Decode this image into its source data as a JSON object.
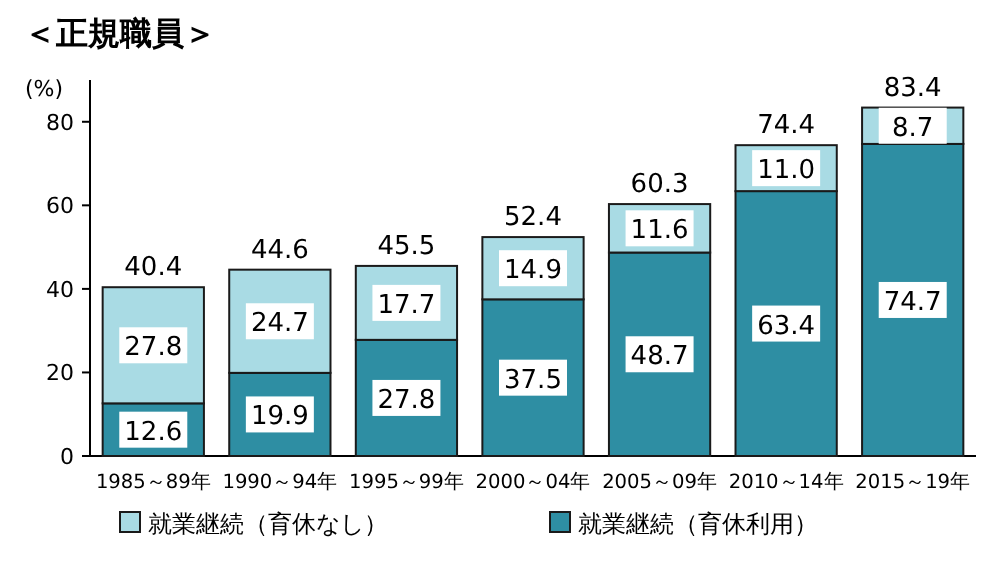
{
  "chart_data": {
    "type": "bar",
    "stacked": true,
    "title": "＜正規職員＞",
    "ylabel": "(%)",
    "categories": [
      "1985～89年",
      "1990～94年",
      "1995～99年",
      "2000～04年",
      "2005～09年",
      "2010～14年",
      "2015～19年"
    ],
    "series": [
      {
        "name": "就業継続（育休利用）",
        "color": "#2e8ea3",
        "values": [
          12.6,
          19.9,
          27.8,
          37.5,
          48.7,
          63.4,
          74.7
        ],
        "value_labels": [
          "12.6",
          "19.9",
          "27.8",
          "37.5",
          "48.7",
          "63.4",
          "74.7"
        ]
      },
      {
        "name": "就業継続（育休なし）",
        "color": "#a9dbe4",
        "values": [
          27.8,
          24.7,
          17.7,
          14.9,
          11.6,
          11.0,
          8.7
        ],
        "value_labels": [
          "27.8",
          "24.7",
          "17.7",
          "14.9",
          "11.6",
          "11.0",
          "8.7"
        ]
      }
    ],
    "totals": [
      "40.4",
      "44.6",
      "45.5",
      "52.4",
      "60.3",
      "74.4",
      "83.4"
    ],
    "ylim": [
      0,
      90
    ],
    "yticks": [
      0,
      20,
      40,
      60,
      80
    ],
    "grid": false,
    "legend": "bottom"
  }
}
